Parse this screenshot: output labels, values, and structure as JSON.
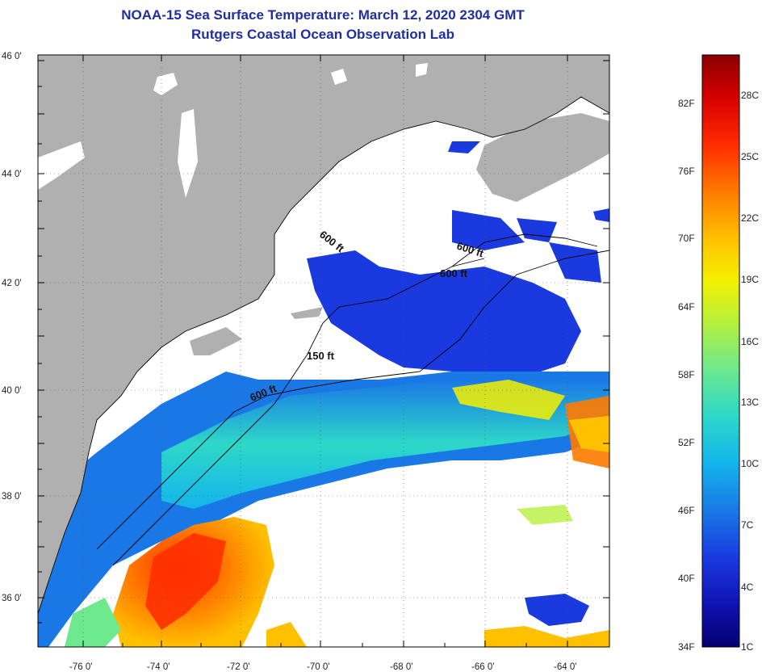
{
  "title": {
    "line1": "NOAA-15 Sea Surface Temperature:  March 12, 2020 2304 GMT",
    "line2": "Rutgers Coastal Ocean Observation Lab"
  },
  "axes": {
    "lat_labels": [
      "46 0'",
      "44 0'",
      "42 0'",
      "40 0'",
      "38 0'",
      "36 0'"
    ],
    "lon_labels": [
      "-76 0'",
      "-74 0'",
      "-72 0'",
      "-70 0'",
      "-68 0'",
      "-66 0'",
      "-64 0'"
    ]
  },
  "contours": {
    "labels": [
      "600 ft",
      "600 ft",
      "600 ft",
      "150 ft",
      "600 ft"
    ]
  },
  "colorbar": {
    "fahrenheit": [
      "82F",
      "76F",
      "70F",
      "64F",
      "58F",
      "52F",
      "46F",
      "40F",
      "34F"
    ],
    "celsius": [
      "28C",
      "25C",
      "22C",
      "19C",
      "16C",
      "13C",
      "10C",
      "7C",
      "4C",
      "1C"
    ],
    "colors": [
      "#8b0000",
      "#d40000",
      "#ff2a00",
      "#ff7a00",
      "#ffc000",
      "#f4f000",
      "#b8f03c",
      "#6ee88c",
      "#2ed8c8",
      "#14b4ec",
      "#1a78e6",
      "#1a3ae0",
      "#0f12b0",
      "#050070"
    ]
  },
  "colors": {
    "land": "#b0b0b0",
    "title": "#1f2f9f",
    "cloud": "#ffffff"
  }
}
